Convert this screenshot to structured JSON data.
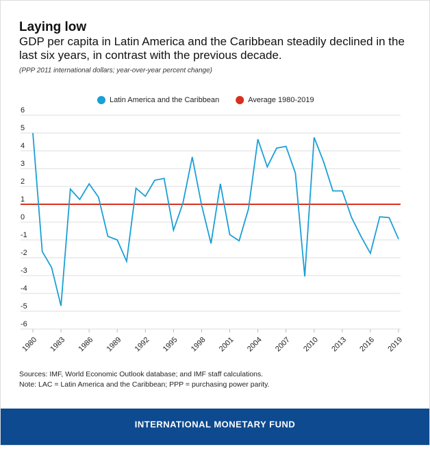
{
  "chart_data": {
    "type": "line",
    "title": "Laying low",
    "subtitle": "GDP per capita in Latin America and the Caribbean steadily declined in the last six years, in contrast with the previous decade.",
    "units_note": "(PPP 2011 international dollars; year-over-year percent change)",
    "x": [
      1980,
      1981,
      1982,
      1983,
      1984,
      1985,
      1986,
      1987,
      1988,
      1989,
      1990,
      1991,
      1992,
      1993,
      1994,
      1995,
      1996,
      1997,
      1998,
      1999,
      2000,
      2001,
      2002,
      2003,
      2004,
      2005,
      2006,
      2007,
      2008,
      2009,
      2010,
      2011,
      2012,
      2013,
      2014,
      2015,
      2016,
      2017,
      2018,
      2019
    ],
    "series": [
      {
        "name": "Latin America and the Caribbean",
        "color": "#1a9fd6",
        "values": [
          5.0,
          -1.65,
          -2.55,
          -4.7,
          1.85,
          1.27,
          2.15,
          1.4,
          -0.8,
          -1.0,
          -2.2,
          1.9,
          1.45,
          2.35,
          2.45,
          -0.45,
          1.05,
          3.65,
          0.95,
          -1.2,
          2.15,
          -0.7,
          -1.05,
          0.75,
          4.65,
          3.1,
          4.15,
          4.25,
          2.75,
          -3.05,
          4.75,
          3.4,
          1.75,
          1.75,
          0.25,
          -0.8,
          -1.75,
          0.3,
          0.25,
          -0.95
        ]
      }
    ],
    "reference_line": {
      "name": "Average 1980-2019",
      "color": "#d7301f",
      "value": 1
    },
    "xlim": [
      1980,
      2019
    ],
    "xticks": [
      1980,
      1983,
      1986,
      1989,
      1992,
      1995,
      1998,
      2001,
      2004,
      2007,
      2010,
      2013,
      2016,
      2019
    ],
    "ylim": [
      -6,
      6
    ],
    "yticks": [
      -6,
      -5,
      -4,
      -3,
      -2,
      -1,
      0,
      1,
      2,
      3,
      4,
      5,
      6
    ],
    "grid": true,
    "sources": "Sources: IMF, World Economic Outlook database; and IMF staff calculations.",
    "note": "Note: LAC = Latin America and the Caribbean; PPP = purchasing power parity.",
    "footer": "INTERNATIONAL MONETARY FUND"
  }
}
